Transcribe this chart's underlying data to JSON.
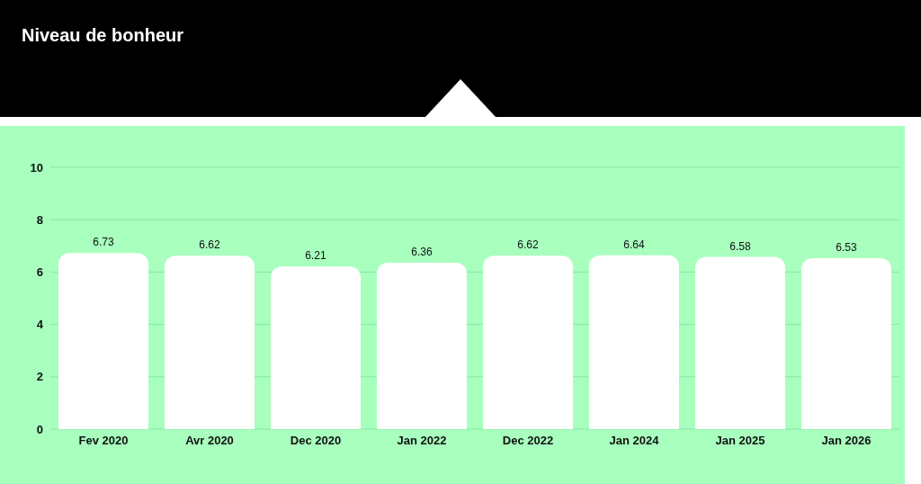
{
  "chart_data": {
    "type": "bar",
    "title": "Niveau de bonheur",
    "categories": [
      "Fev 2020",
      "Avr 2020",
      "Dec 2020",
      "Jan 2022",
      "Dec 2022",
      "Jan 2024",
      "Jan 2025",
      "Jan 2026"
    ],
    "values": [
      6.73,
      6.62,
      6.21,
      6.36,
      6.62,
      6.64,
      6.58,
      6.53
    ],
    "color": "#ffffff",
    "ylim": [
      0,
      10
    ],
    "yticks": [
      0,
      2,
      4,
      6,
      8,
      10
    ],
    "grid": "y",
    "data_labels": true
  }
}
